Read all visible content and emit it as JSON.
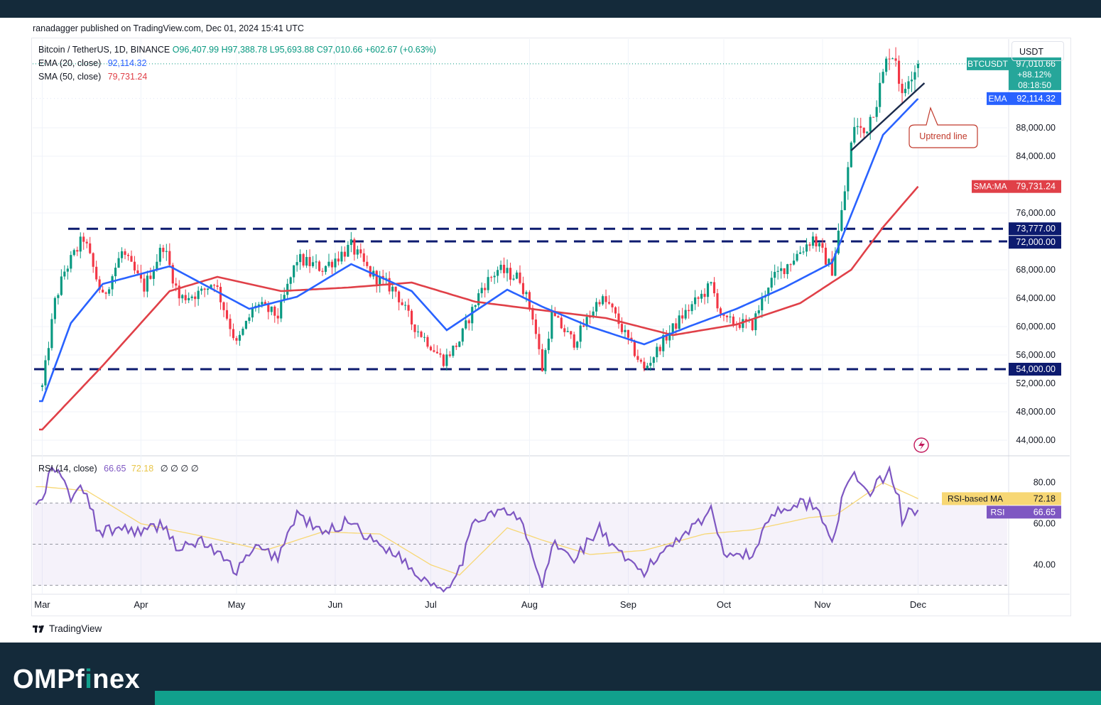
{
  "header": {
    "published": "ranadagger published on TradingView.com, Dec 01, 2024 15:41 UTC"
  },
  "legend": {
    "symbol": "Bitcoin / TetherUS, 1D, BINANCE",
    "o": "O96,407.99",
    "h": "H97,388.78",
    "l": "L95,693.88",
    "c": "C97,010.66",
    "change": "+602.67 (+0.63%)",
    "ema_label": "EMA (20, close)",
    "ema_value": "92,114.32",
    "sma_label": "SMA (50, close)",
    "sma_value": "79,731.24",
    "rsi_label": "RSI (14, close)",
    "rsi_value": "66.65",
    "rsi_ma_value": "72.18",
    "rsi_extra": "∅ ∅ ∅ ∅"
  },
  "unit": "USDT",
  "branding": {
    "tradingview": "TradingView",
    "omp_a": "OMPf",
    "omp_b": "i",
    "omp_c": "nex"
  },
  "annotation": {
    "uptrend": "Uptrend line"
  },
  "colors": {
    "up": "#089981",
    "down": "#f23645",
    "ema": "#2962ff",
    "sma": "#e04048",
    "rsi": "#7e57c2",
    "rsi_ma": "#f7d774",
    "level_line": "#0d1b6f",
    "trendline": "#1a2a4a",
    "annotation": "#c0392b"
  },
  "chart_data": [
    {
      "type": "candlestick",
      "title": "Bitcoin / TetherUS, 1D, BINANCE",
      "ylim": [
        42000,
        100500
      ],
      "y_ticks": [
        "88,000.00",
        "84,000.00",
        "76,000.00",
        "68,000.00",
        "64,000.00",
        "60,000.00",
        "56,000.00",
        "52,000.00",
        "48,000.00",
        "44,000.00"
      ],
      "y_tick_values": [
        88000,
        84000,
        76000,
        68000,
        64000,
        60000,
        56000,
        52000,
        48000,
        44000
      ],
      "x_ticks": [
        "Mar",
        "Apr",
        "May",
        "Jun",
        "Jul",
        "Aug",
        "Sep",
        "Oct",
        "Nov",
        "Dec"
      ],
      "grid": true,
      "price_tags": [
        {
          "label": "BTCUSDT",
          "value": "97,010.66",
          "extra": [
            "+88.12%",
            "08:18:50"
          ],
          "price": 97010.66,
          "color": "#26a69a"
        },
        {
          "label": "EMA",
          "value": "92,114.32",
          "price": 92114.32,
          "color": "#2962ff"
        },
        {
          "label": "SMA:MA",
          "value": "79,731.24",
          "price": 79731.24,
          "color": "#e04048"
        },
        {
          "label": "",
          "value": "73,777.00",
          "price": 73777,
          "color": "#0d1b6f"
        },
        {
          "label": "",
          "value": "72,000.00",
          "price": 72000,
          "color": "#0d1b6f"
        },
        {
          "label": "",
          "value": "54,000.00",
          "price": 54000,
          "color": "#0d1b6f"
        }
      ],
      "horizontal_levels": [
        73777,
        72000,
        54000
      ],
      "series_close_anchors": [
        {
          "t": "2024-03-01",
          "v": 51500
        },
        {
          "t": "2024-03-05",
          "v": 63500
        },
        {
          "t": "2024-03-08",
          "v": 67800
        },
        {
          "t": "2024-03-14",
          "v": 72500
        },
        {
          "t": "2024-03-20",
          "v": 64000
        },
        {
          "t": "2024-03-26",
          "v": 70500
        },
        {
          "t": "2024-04-02",
          "v": 65500
        },
        {
          "t": "2024-04-08",
          "v": 71500
        },
        {
          "t": "2024-04-13",
          "v": 64000
        },
        {
          "t": "2024-04-20",
          "v": 64800
        },
        {
          "t": "2024-04-24",
          "v": 66500
        },
        {
          "t": "2024-05-01",
          "v": 57500
        },
        {
          "t": "2024-05-07",
          "v": 63200
        },
        {
          "t": "2024-05-14",
          "v": 61500
        },
        {
          "t": "2024-05-20",
          "v": 69500
        },
        {
          "t": "2024-05-28",
          "v": 68200
        },
        {
          "t": "2024-06-06",
          "v": 71300
        },
        {
          "t": "2024-06-12",
          "v": 67500
        },
        {
          "t": "2024-06-20",
          "v": 65000
        },
        {
          "t": "2024-06-25",
          "v": 60500
        },
        {
          "t": "2024-07-05",
          "v": 55200
        },
        {
          "t": "2024-07-10",
          "v": 58000
        },
        {
          "t": "2024-07-17",
          "v": 65500
        },
        {
          "t": "2024-07-22",
          "v": 68000
        },
        {
          "t": "2024-07-29",
          "v": 66800
        },
        {
          "t": "2024-08-02",
          "v": 61500
        },
        {
          "t": "2024-08-05",
          "v": 54000
        },
        {
          "t": "2024-08-08",
          "v": 61600
        },
        {
          "t": "2024-08-15",
          "v": 57800
        },
        {
          "t": "2024-08-23",
          "v": 64000
        },
        {
          "t": "2024-08-26",
          "v": 63000
        },
        {
          "t": "2024-09-06",
          "v": 53900
        },
        {
          "t": "2024-09-12",
          "v": 58000
        },
        {
          "t": "2024-09-18",
          "v": 61500
        },
        {
          "t": "2024-09-27",
          "v": 65800
        },
        {
          "t": "2024-10-01",
          "v": 60800
        },
        {
          "t": "2024-10-10",
          "v": 60200
        },
        {
          "t": "2024-10-15",
          "v": 66000
        },
        {
          "t": "2024-10-21",
          "v": 68800
        },
        {
          "t": "2024-10-29",
          "v": 72500
        },
        {
          "t": "2024-11-04",
          "v": 68000
        },
        {
          "t": "2024-11-07",
          "v": 76000
        },
        {
          "t": "2024-11-11",
          "v": 88500
        },
        {
          "t": "2024-11-14",
          "v": 87200
        },
        {
          "t": "2024-11-18",
          "v": 92000
        },
        {
          "t": "2024-11-22",
          "v": 98800
        },
        {
          "t": "2024-11-24",
          "v": 98000
        },
        {
          "t": "2024-11-26",
          "v": 92000
        },
        {
          "t": "2024-11-28",
          "v": 95500
        },
        {
          "t": "2024-12-01",
          "v": 97010.66
        }
      ],
      "ema20_anchors": [
        {
          "t": "2024-03-01",
          "v": 49500
        },
        {
          "t": "2024-03-10",
          "v": 60500
        },
        {
          "t": "2024-03-20",
          "v": 66000
        },
        {
          "t": "2024-04-10",
          "v": 68500
        },
        {
          "t": "2024-05-05",
          "v": 62500
        },
        {
          "t": "2024-05-20",
          "v": 64200
        },
        {
          "t": "2024-06-06",
          "v": 68800
        },
        {
          "t": "2024-06-25",
          "v": 65000
        },
        {
          "t": "2024-07-06",
          "v": 59500
        },
        {
          "t": "2024-07-25",
          "v": 65200
        },
        {
          "t": "2024-08-05",
          "v": 62800
        },
        {
          "t": "2024-08-20",
          "v": 60000
        },
        {
          "t": "2024-09-06",
          "v": 57500
        },
        {
          "t": "2024-09-20",
          "v": 60000
        },
        {
          "t": "2024-10-05",
          "v": 62500
        },
        {
          "t": "2024-10-20",
          "v": 65500
        },
        {
          "t": "2024-11-04",
          "v": 69000
        },
        {
          "t": "2024-11-12",
          "v": 78000
        },
        {
          "t": "2024-11-20",
          "v": 87000
        },
        {
          "t": "2024-12-01",
          "v": 92114.32
        }
      ],
      "sma50_anchors": [
        {
          "t": "2024-03-01",
          "v": 45500
        },
        {
          "t": "2024-03-20",
          "v": 54500
        },
        {
          "t": "2024-04-10",
          "v": 65000
        },
        {
          "t": "2024-04-25",
          "v": 67000
        },
        {
          "t": "2024-05-15",
          "v": 65000
        },
        {
          "t": "2024-06-05",
          "v": 65500
        },
        {
          "t": "2024-06-25",
          "v": 66200
        },
        {
          "t": "2024-07-15",
          "v": 63500
        },
        {
          "t": "2024-08-05",
          "v": 62300
        },
        {
          "t": "2024-08-25",
          "v": 61200
        },
        {
          "t": "2024-09-15",
          "v": 58800
        },
        {
          "t": "2024-10-05",
          "v": 60300
        },
        {
          "t": "2024-10-25",
          "v": 63300
        },
        {
          "t": "2024-11-10",
          "v": 68000
        },
        {
          "t": "2024-11-20",
          "v": 74000
        },
        {
          "t": "2024-12-01",
          "v": 79731.24
        }
      ],
      "trendline": [
        {
          "t": "2024-11-10",
          "v": 84800
        },
        {
          "t": "2024-12-03",
          "v": 94300
        }
      ]
    },
    {
      "type": "line",
      "title": "RSI (14, close)",
      "ylim": [
        26,
        92
      ],
      "y_ticks": [
        "80.00",
        "60.00",
        "40.00"
      ],
      "y_tick_values": [
        80,
        60,
        40
      ],
      "bands": [
        70,
        50,
        30
      ],
      "price_tags": [
        {
          "label": "RSI-based MA",
          "value": "72.18",
          "price": 72.18,
          "color": "#f7d774"
        },
        {
          "label": "RSI",
          "value": "66.65",
          "price": 66.65,
          "color": "#7e57c2"
        }
      ],
      "rsi_anchors": [
        {
          "t": "2024-03-01",
          "v": 70
        },
        {
          "t": "2024-03-04",
          "v": 88
        },
        {
          "t": "2024-03-07",
          "v": 82
        },
        {
          "t": "2024-03-10",
          "v": 73
        },
        {
          "t": "2024-03-14",
          "v": 77
        },
        {
          "t": "2024-03-19",
          "v": 55
        },
        {
          "t": "2024-03-25",
          "v": 58
        },
        {
          "t": "2024-04-02",
          "v": 56
        },
        {
          "t": "2024-04-08",
          "v": 60
        },
        {
          "t": "2024-04-13",
          "v": 47
        },
        {
          "t": "2024-04-20",
          "v": 52
        },
        {
          "t": "2024-05-01",
          "v": 37
        },
        {
          "t": "2024-05-07",
          "v": 48
        },
        {
          "t": "2024-05-14",
          "v": 44
        },
        {
          "t": "2024-05-20",
          "v": 65
        },
        {
          "t": "2024-05-28",
          "v": 55
        },
        {
          "t": "2024-06-06",
          "v": 62
        },
        {
          "t": "2024-06-12",
          "v": 52
        },
        {
          "t": "2024-06-20",
          "v": 46
        },
        {
          "t": "2024-06-26",
          "v": 36
        },
        {
          "t": "2024-07-05",
          "v": 28
        },
        {
          "t": "2024-07-10",
          "v": 38
        },
        {
          "t": "2024-07-15",
          "v": 62
        },
        {
          "t": "2024-07-22",
          "v": 67
        },
        {
          "t": "2024-07-29",
          "v": 62
        },
        {
          "t": "2024-08-02",
          "v": 45
        },
        {
          "t": "2024-08-05",
          "v": 28
        },
        {
          "t": "2024-08-08",
          "v": 50
        },
        {
          "t": "2024-08-15",
          "v": 43
        },
        {
          "t": "2024-08-23",
          "v": 58
        },
        {
          "t": "2024-08-28",
          "v": 46
        },
        {
          "t": "2024-09-06",
          "v": 36
        },
        {
          "t": "2024-09-12",
          "v": 47
        },
        {
          "t": "2024-09-18",
          "v": 55
        },
        {
          "t": "2024-09-27",
          "v": 66
        },
        {
          "t": "2024-10-01",
          "v": 47
        },
        {
          "t": "2024-10-10",
          "v": 44
        },
        {
          "t": "2024-10-15",
          "v": 63
        },
        {
          "t": "2024-10-21",
          "v": 69
        },
        {
          "t": "2024-10-29",
          "v": 70
        },
        {
          "t": "2024-11-04",
          "v": 53
        },
        {
          "t": "2024-11-07",
          "v": 70
        },
        {
          "t": "2024-11-11",
          "v": 86
        },
        {
          "t": "2024-11-15",
          "v": 74
        },
        {
          "t": "2024-11-22",
          "v": 85
        },
        {
          "t": "2024-11-25",
          "v": 72
        },
        {
          "t": "2024-11-26",
          "v": 62
        },
        {
          "t": "2024-11-28",
          "v": 68
        },
        {
          "t": "2024-12-01",
          "v": 66.65
        }
      ],
      "rsi_ma_anchors": [
        {
          "t": "2024-03-01",
          "v": 78
        },
        {
          "t": "2024-03-15",
          "v": 76
        },
        {
          "t": "2024-04-01",
          "v": 60
        },
        {
          "t": "2024-04-20",
          "v": 54
        },
        {
          "t": "2024-05-10",
          "v": 47
        },
        {
          "t": "2024-05-28",
          "v": 56
        },
        {
          "t": "2024-06-15",
          "v": 55
        },
        {
          "t": "2024-07-01",
          "v": 40
        },
        {
          "t": "2024-07-10",
          "v": 35
        },
        {
          "t": "2024-07-25",
          "v": 58
        },
        {
          "t": "2024-08-05",
          "v": 52
        },
        {
          "t": "2024-08-20",
          "v": 45
        },
        {
          "t": "2024-09-06",
          "v": 47
        },
        {
          "t": "2024-09-25",
          "v": 55
        },
        {
          "t": "2024-10-10",
          "v": 57
        },
        {
          "t": "2024-10-28",
          "v": 63
        },
        {
          "t": "2024-11-05",
          "v": 64
        },
        {
          "t": "2024-11-20",
          "v": 80
        },
        {
          "t": "2024-12-01",
          "v": 72.18
        }
      ]
    }
  ]
}
